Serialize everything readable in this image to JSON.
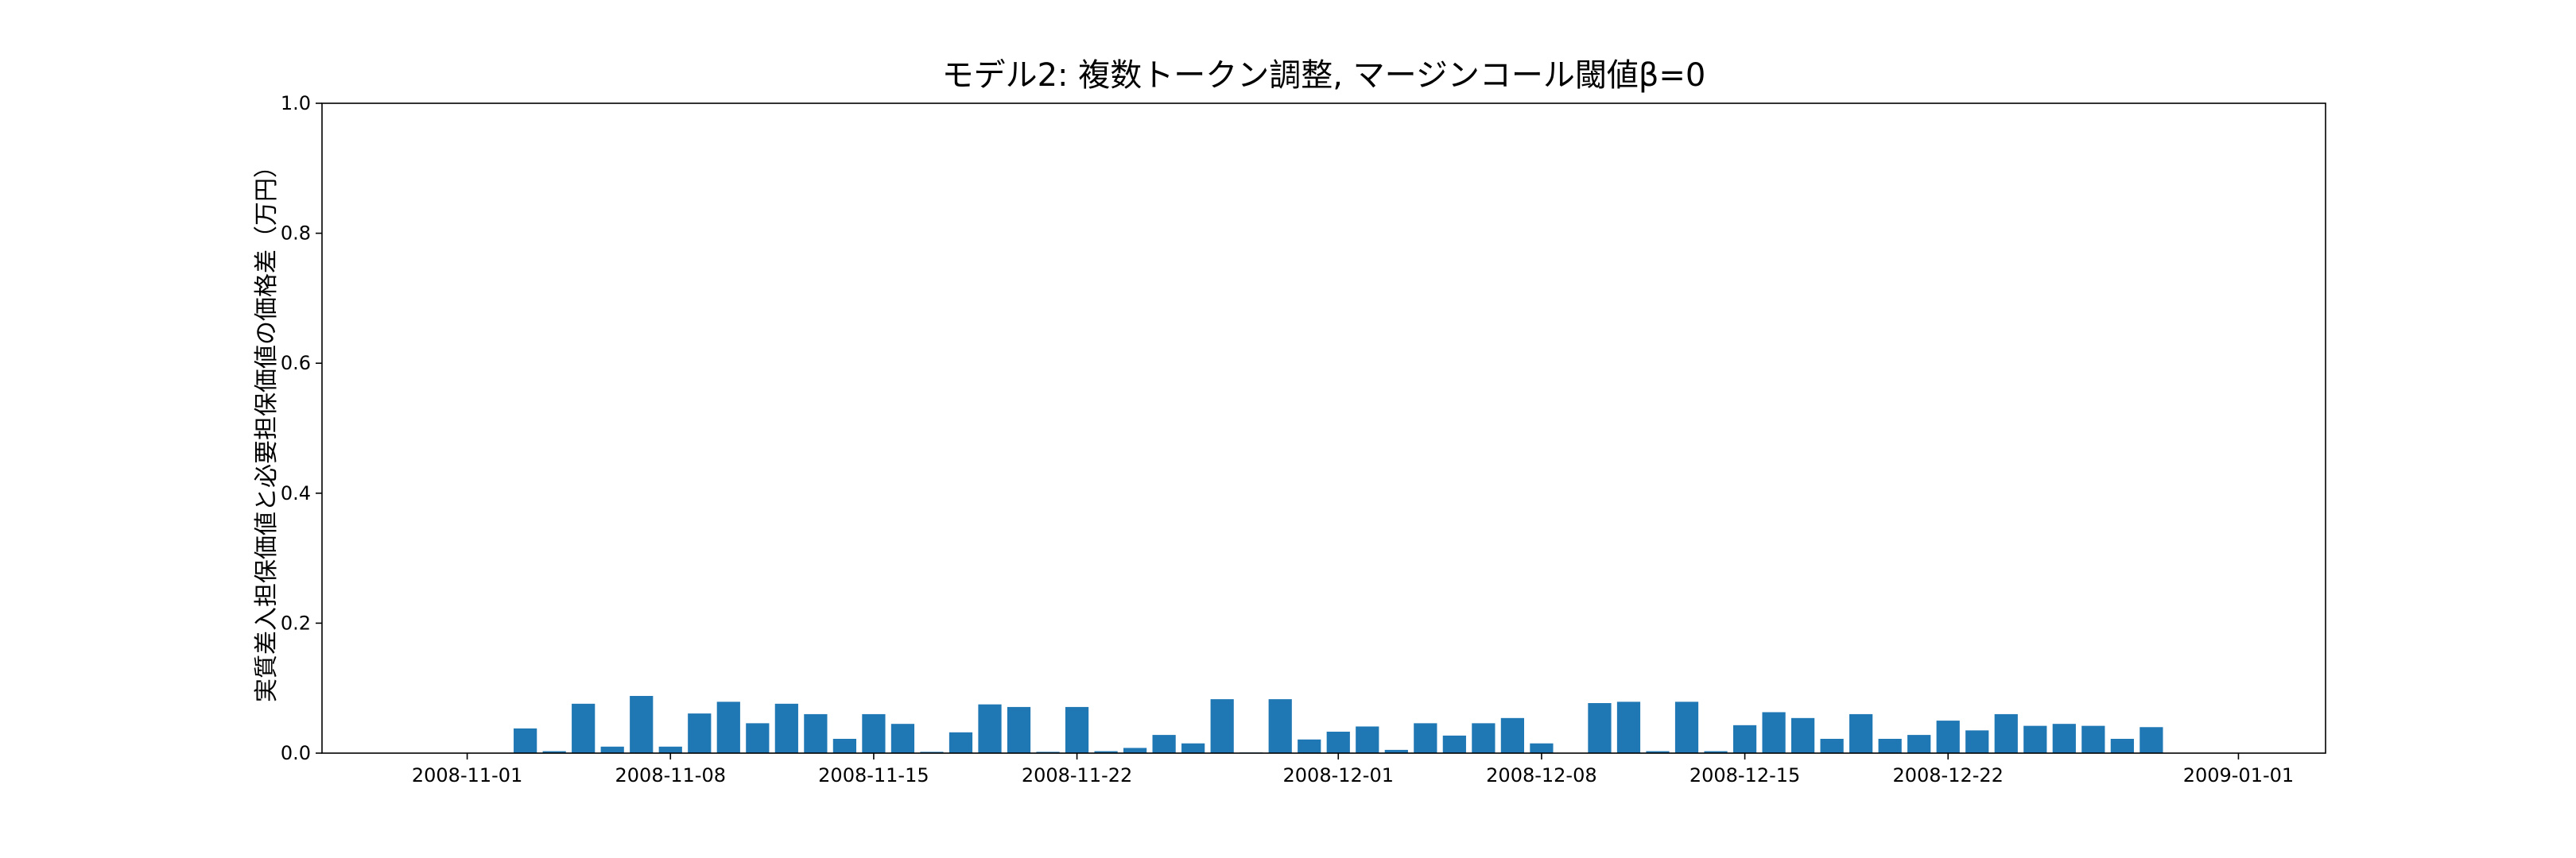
{
  "chart_data": {
    "type": "bar",
    "title": "モデル2: 複数トークン調整, マージンコール閾値β=0",
    "xlabel": "",
    "ylabel": "実質差入担保価値と必要担保価値の価格差（万円）",
    "ylim": [
      0,
      1.0
    ],
    "y_ticks": [
      "0.0",
      "0.2",
      "0.4",
      "0.6",
      "0.8",
      "1.0"
    ],
    "x_range": [
      "2008-10-27",
      "2009-01-04"
    ],
    "x_ticks": [
      "2008-11-01",
      "2008-11-08",
      "2008-11-15",
      "2008-11-22",
      "2008-12-01",
      "2008-12-08",
      "2008-12-15",
      "2008-12-22",
      "2009-01-01"
    ],
    "bar_color": "#1f77b4",
    "grid": false,
    "series": [
      {
        "x": [
          "2008-10-27",
          "2008-10-28",
          "2008-10-29",
          "2008-10-30",
          "2008-10-31",
          "2008-11-01",
          "2008-11-02",
          "2008-11-03",
          "2008-11-04",
          "2008-11-05",
          "2008-11-06",
          "2008-11-07",
          "2008-11-08",
          "2008-11-09",
          "2008-11-10",
          "2008-11-11",
          "2008-11-12",
          "2008-11-13",
          "2008-11-14",
          "2008-11-15",
          "2008-11-16",
          "2008-11-17",
          "2008-11-18",
          "2008-11-19",
          "2008-11-20",
          "2008-11-21",
          "2008-11-22",
          "2008-11-23",
          "2008-11-24",
          "2008-11-25",
          "2008-11-26",
          "2008-11-27",
          "2008-11-28",
          "2008-11-29",
          "2008-11-30",
          "2008-12-01",
          "2008-12-02",
          "2008-12-03",
          "2008-12-04",
          "2008-12-05",
          "2008-12-06",
          "2008-12-07",
          "2008-12-08",
          "2008-12-09",
          "2008-12-10",
          "2008-12-11",
          "2008-12-12",
          "2008-12-13",
          "2008-12-14",
          "2008-12-15",
          "2008-12-16",
          "2008-12-17",
          "2008-12-18",
          "2008-12-19",
          "2008-12-20",
          "2008-12-21",
          "2008-12-22",
          "2008-12-23",
          "2008-12-24",
          "2008-12-25",
          "2008-12-26",
          "2008-12-27",
          "2008-12-28",
          "2008-12-29",
          "2008-12-30",
          "2008-12-31",
          "2009-01-01",
          "2009-01-02"
        ],
        "values": [
          0.0,
          0.0,
          0.0,
          0.0,
          0.0,
          0.0,
          0.0,
          0.038,
          0.003,
          0.076,
          0.01,
          0.088,
          0.01,
          0.061,
          0.079,
          0.046,
          0.076,
          0.06,
          0.022,
          0.06,
          0.045,
          0.002,
          0.032,
          0.075,
          0.071,
          0.002,
          0.071,
          0.003,
          0.008,
          0.028,
          0.015,
          0.083,
          0.001,
          0.083,
          0.021,
          0.033,
          0.041,
          0.005,
          0.046,
          0.027,
          0.046,
          0.054,
          0.015,
          0.0,
          0.077,
          0.079,
          0.003,
          0.079,
          0.003,
          0.043,
          0.063,
          0.054,
          0.022,
          0.06,
          0.022,
          0.028,
          0.05,
          0.035,
          0.06,
          0.042,
          0.045,
          0.042,
          0.022,
          0.04,
          0.0,
          0.0,
          0.0,
          0.0
        ]
      }
    ]
  }
}
